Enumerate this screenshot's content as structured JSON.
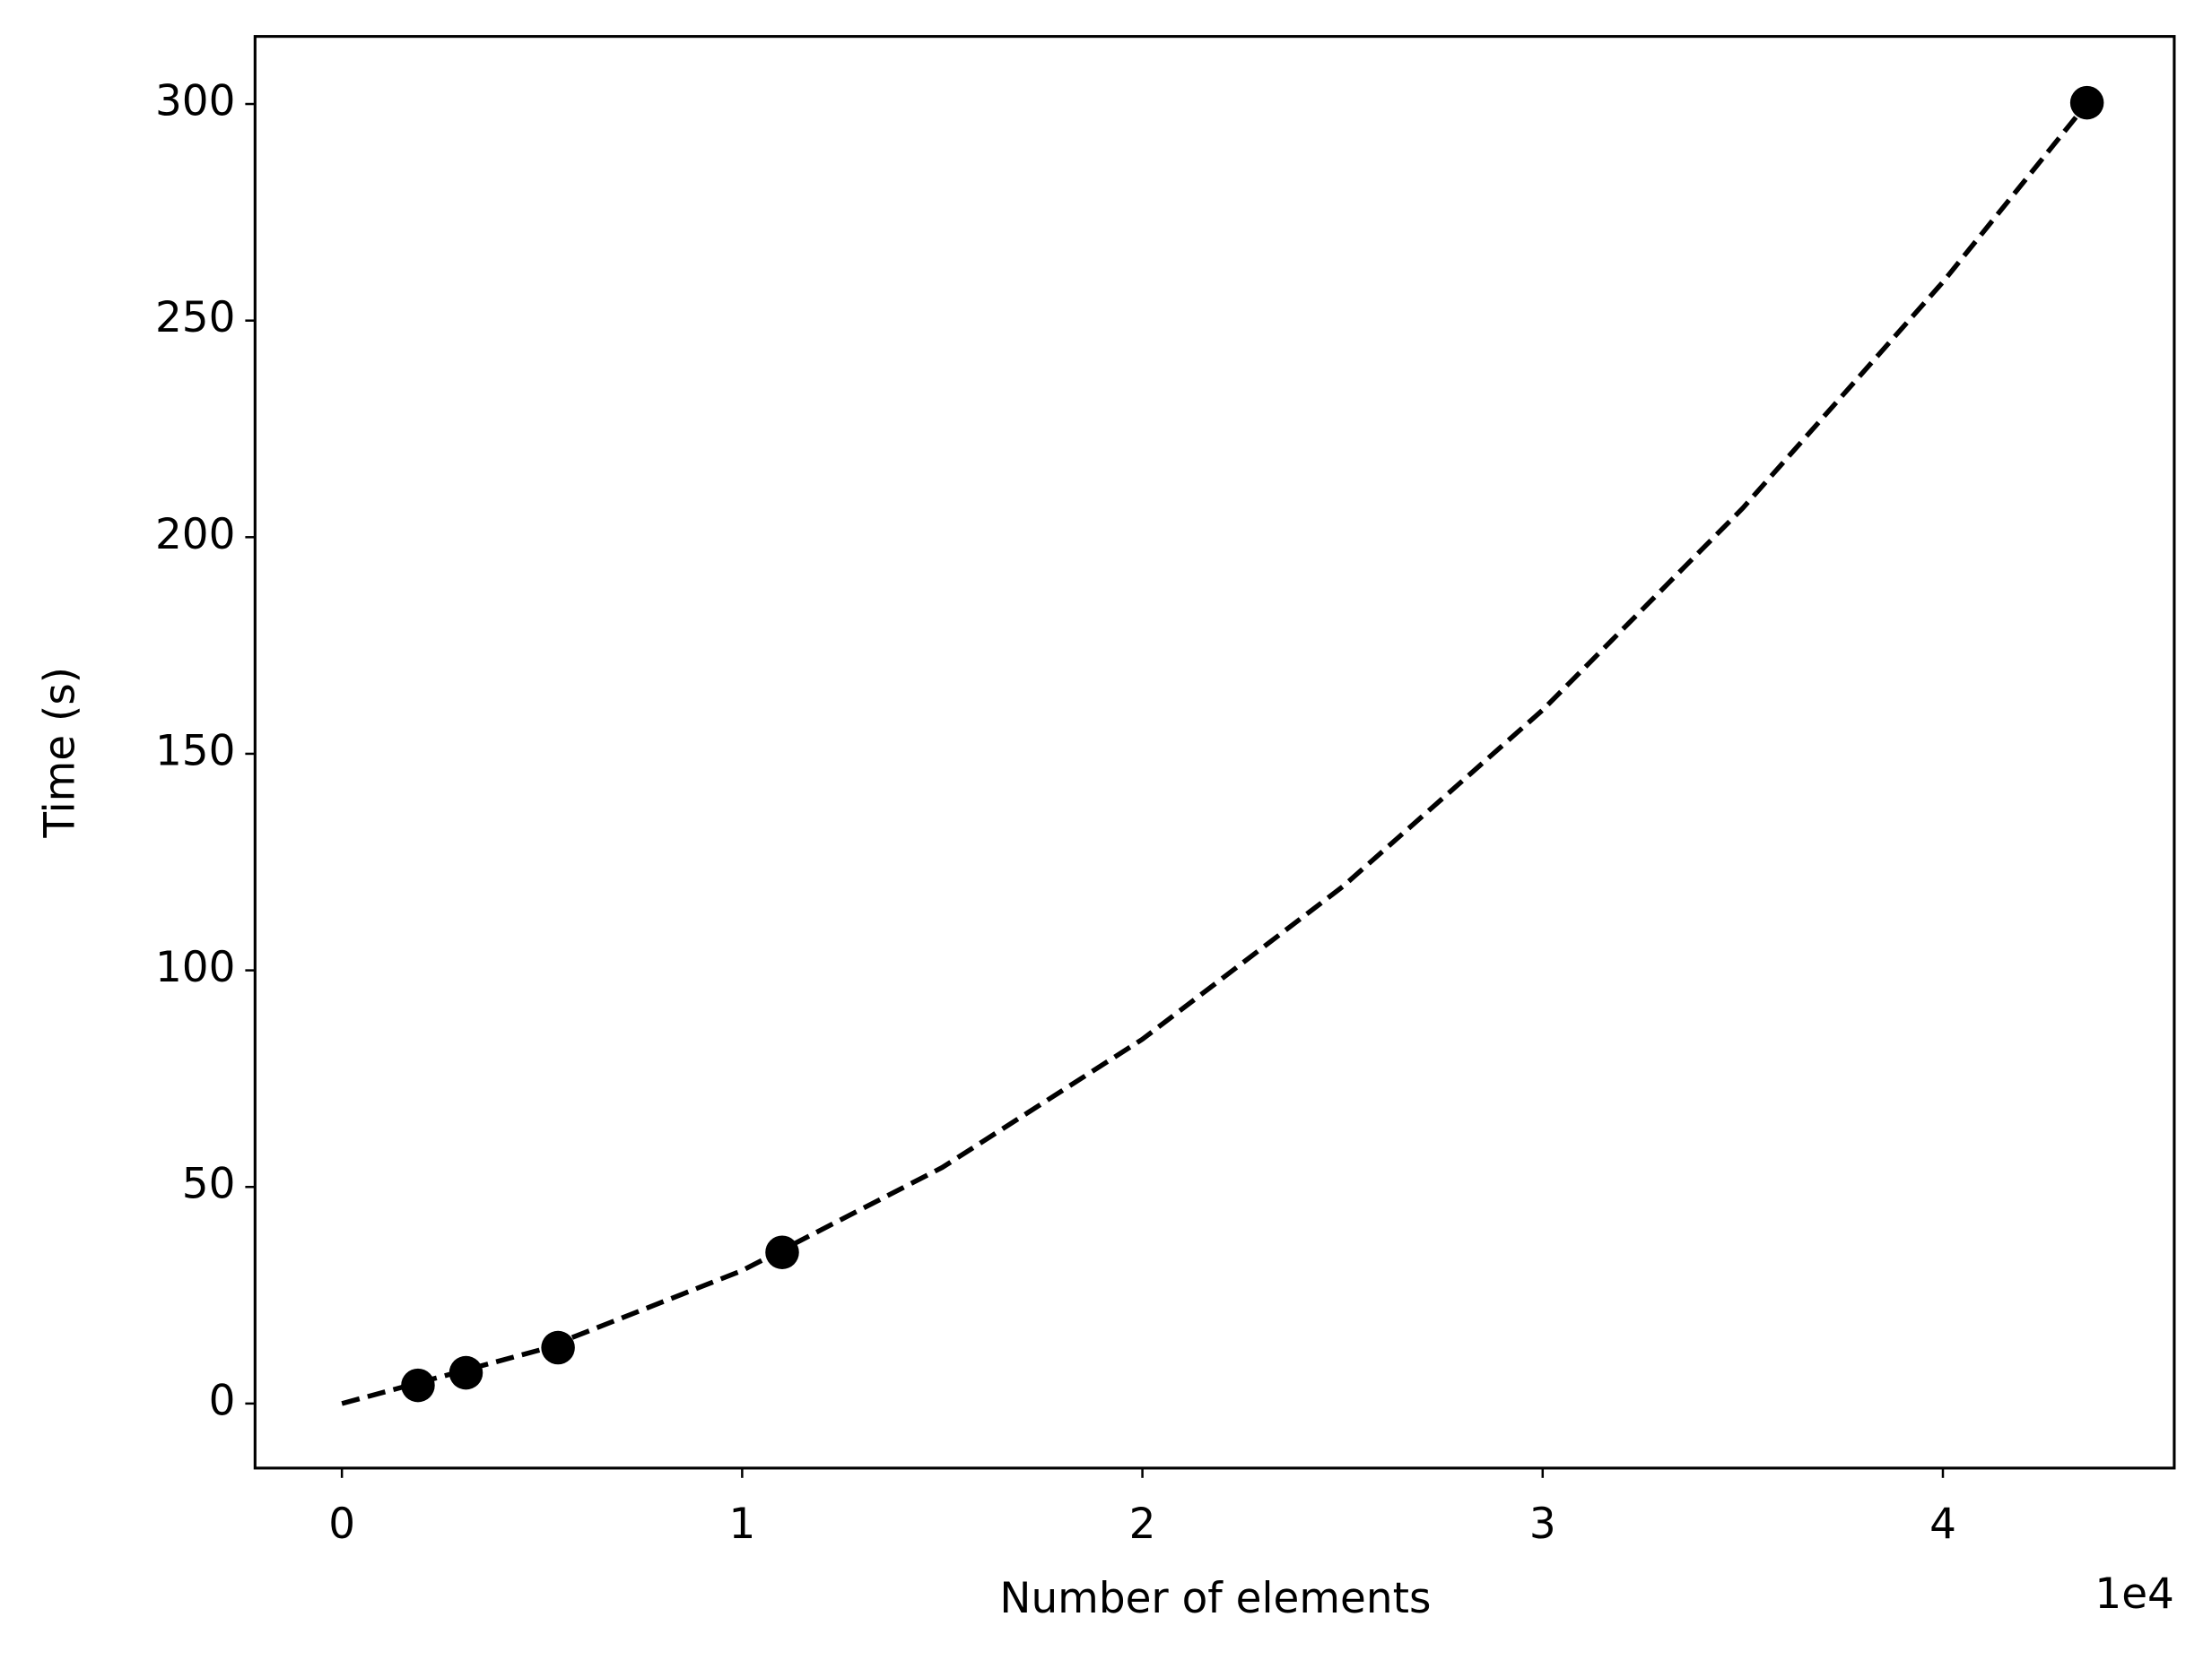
{
  "chart_data": {
    "type": "scatter",
    "x_label": "Number of elements",
    "y_label": "Time (s)",
    "x_scale_label": "1e4",
    "xlim": [
      -2170,
      45780
    ],
    "ylim": [
      -14.9,
      315.6
    ],
    "xticks": [
      0,
      {
        "value": 10000,
        "label": "1"
      },
      {
        "value": 20000,
        "label": "2"
      },
      {
        "value": 30000,
        "label": "3"
      },
      {
        "value": 40000,
        "label": "4"
      }
    ],
    "yticks": [
      0,
      50,
      100,
      150,
      200,
      250,
      300
    ],
    "grid": false,
    "series": [
      {
        "type": "scatter",
        "color": "#000000",
        "x": [
          1900,
          3100,
          5400,
          11000,
          43600
        ],
        "values": [
          4.2,
          7.1,
          12.9,
          34.9,
          300.3
        ]
      },
      {
        "type": "line",
        "style": "dashed",
        "color": "#000000",
        "x": [
          0,
          5000,
          10000,
          15000,
          20000,
          25000,
          30000,
          35000,
          40000,
          43600
        ],
        "values": [
          0,
          12.5,
          30.7,
          54.5,
          84.1,
          119.3,
          160.1,
          206.7,
          258.9,
          300.1
        ]
      }
    ]
  }
}
